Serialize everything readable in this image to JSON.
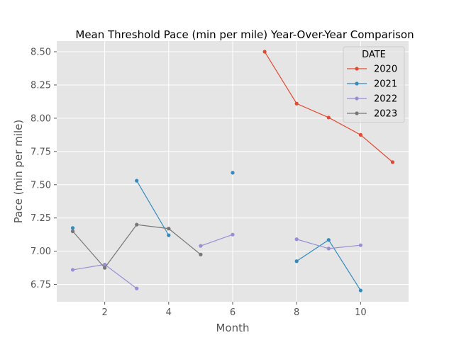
{
  "chart_data": {
    "type": "line",
    "title": "Mean Threshold Pace (min per mile) Year-Over-Year Comparison",
    "xlabel": "Month",
    "ylabel": "Pace (min per mile)",
    "xlim": [
      0.5,
      11.5
    ],
    "ylim": [
      6.62,
      8.58
    ],
    "xticks": [
      2,
      4,
      6,
      8,
      10
    ],
    "xtick_labels": [
      "2",
      "4",
      "6",
      "8",
      "10"
    ],
    "yticks": [
      6.75,
      7.0,
      7.25,
      7.5,
      7.75,
      8.0,
      8.25,
      8.5
    ],
    "ytick_labels": [
      "6.75",
      "7.00",
      "7.25",
      "7.50",
      "7.75",
      "8.00",
      "8.25",
      "8.50"
    ],
    "grid": true,
    "legend": {
      "title": "DATE",
      "placement": "top-right"
    },
    "series": [
      {
        "name": "2020",
        "color": "#E24A33",
        "points": [
          [
            7,
            8.5
          ],
          [
            8,
            8.11
          ],
          [
            9,
            8.005
          ],
          [
            10,
            7.875
          ],
          [
            11,
            7.67
          ]
        ]
      },
      {
        "name": "2021",
        "color": "#348ABD",
        "points": [
          [
            1,
            7.175
          ],
          [
            3,
            7.53
          ],
          [
            4,
            7.12
          ],
          [
            6,
            7.59
          ],
          [
            8,
            6.925
          ],
          [
            9,
            7.085
          ],
          [
            10,
            6.705
          ]
        ],
        "segments": [
          [
            [
              3,
              7.53
            ],
            [
              4,
              7.12
            ]
          ],
          [
            [
              8,
              6.925
            ],
            [
              9,
              7.085
            ],
            [
              10,
              6.705
            ]
          ]
        ]
      },
      {
        "name": "2022",
        "color": "#988ED5",
        "points": [
          [
            1,
            6.86
          ],
          [
            2,
            6.9
          ],
          [
            3,
            6.72
          ],
          [
            5,
            7.04
          ],
          [
            6,
            7.125
          ],
          [
            8,
            7.09
          ],
          [
            9,
            7.02
          ],
          [
            10,
            7.045
          ]
        ],
        "segments": [
          [
            [
              1,
              6.86
            ],
            [
              2,
              6.9
            ],
            [
              3,
              6.72
            ]
          ],
          [
            [
              5,
              7.04
            ],
            [
              6,
              7.125
            ]
          ],
          [
            [
              8,
              7.09
            ],
            [
              9,
              7.02
            ],
            [
              10,
              7.045
            ]
          ]
        ]
      },
      {
        "name": "2023",
        "color": "#777777",
        "points": [
          [
            1,
            7.15
          ],
          [
            2,
            6.875
          ],
          [
            3,
            7.2
          ],
          [
            4,
            7.17
          ],
          [
            5,
            6.975
          ]
        ]
      }
    ]
  }
}
